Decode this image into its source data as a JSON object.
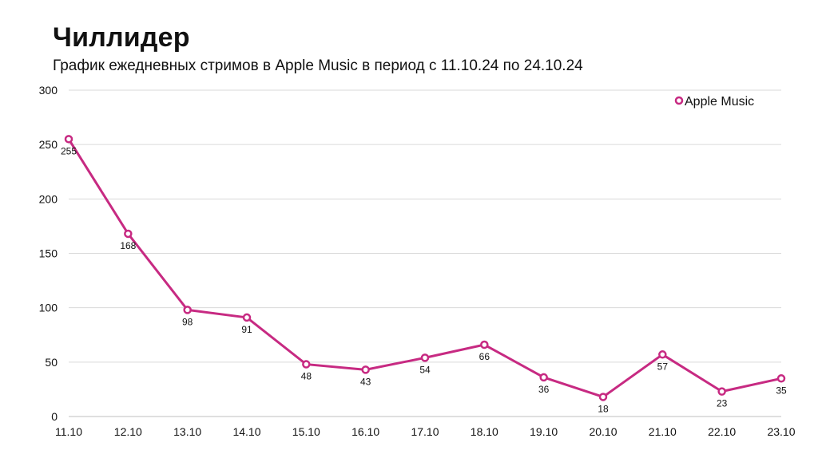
{
  "chart_data": {
    "type": "line",
    "title": "Чиллидер",
    "subtitle": "График ежедневных стримов в Apple Music в период с 11.10.24 по 24.10.24",
    "categories": [
      "11.10",
      "12.10",
      "13.10",
      "14.10",
      "15.10",
      "16.10",
      "17.10",
      "18.10",
      "19.10",
      "20.10",
      "21.10",
      "22.10",
      "23.10"
    ],
    "series": [
      {
        "name": "Apple Music",
        "values": [
          255,
          168,
          98,
          91,
          48,
          43,
          54,
          66,
          36,
          18,
          57,
          23,
          35
        ],
        "color": "#c72a82"
      }
    ],
    "ylim": [
      0,
      300
    ],
    "yticks": [
      0,
      50,
      100,
      150,
      200,
      250,
      300
    ],
    "grid": true,
    "legend": "top-right"
  }
}
